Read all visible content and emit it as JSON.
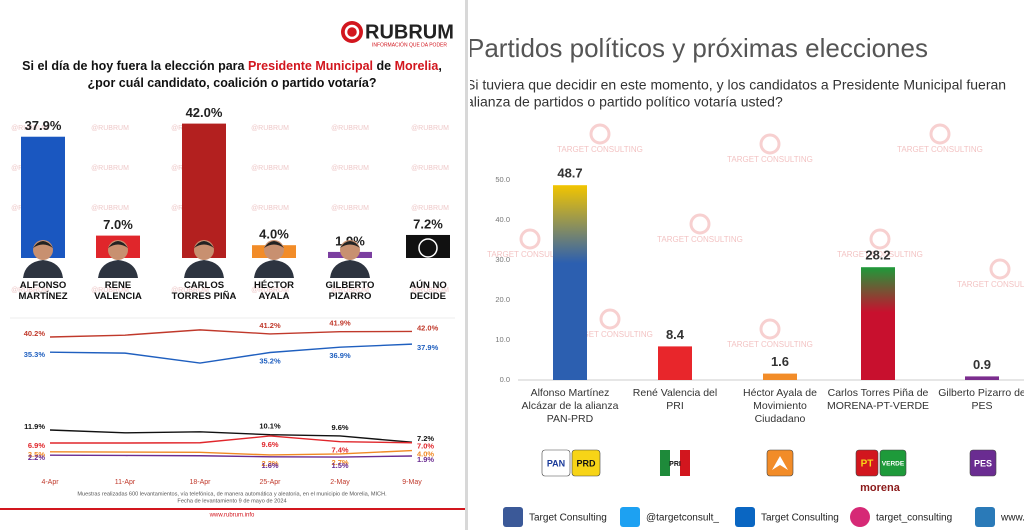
{
  "left": {
    "logo": {
      "name": "RUBRUM",
      "tagline": "INFORMACIÓN QUE DA PODER"
    },
    "watermark": "@RUBRUM",
    "footnote": [
      "Muestras realizadas 600 levantamientos, vía telefónica, de manera automática y aleatoria, en el municipio de Morelia, MICH.",
      "Fecha de levantamiento 9 de mayo de 2024"
    ],
    "url": "www.rubrum.info"
  },
  "right": {
    "watermark": "TARGET CONSULTING",
    "logos": [
      "PAN",
      "PRD",
      "PRI",
      "PT",
      "VERDE",
      "morena",
      "PES"
    ],
    "social": [
      "Target Consulting",
      "@targetconsult_",
      "Target Consulting",
      "target_consulting",
      "www.t"
    ]
  },
  "chart_data": [
    {
      "type": "bar",
      "title": [
        "Si el día de hoy fuera la elección para",
        "Presidente Municipal",
        "de",
        "Morelia",
        ", ¿por cuál candidato, coalición o partido votaría?"
      ],
      "categories": [
        "ALFONSO MARTÍNEZ",
        "RENE VALENCIA",
        "CARLOS TORRES PIÑA",
        "HÉCTOR AYALA",
        "GILBERTO PIZARRO",
        "AÚN NO DECIDE"
      ],
      "values": [
        37.9,
        7.0,
        42.0,
        4.0,
        1.9,
        7.2
      ],
      "value_labels": [
        "37.9%",
        "7.0%",
        "42.0%",
        "4.0%",
        "1.9%",
        "7.2%"
      ],
      "colors": [
        "#1a57c0",
        "#e0262b",
        "#b3201f",
        "#f28c28",
        "#7b3fa0",
        "#111111"
      ]
    },
    {
      "type": "line",
      "categories": [
        "4-Apr",
        "11-Apr",
        "18-Apr",
        "25-Apr",
        "2-May",
        "9-May"
      ],
      "series": [
        {
          "color": "#c0392b",
          "values": [
            40.2,
            40.8,
            42.5,
            41.2,
            41.9,
            42.0
          ],
          "value_labels": [
            "40.2%",
            null,
            null,
            "41.2%",
            "41.9%",
            "42.0%"
          ]
        },
        {
          "color": "#1f5fbf",
          "values": [
            35.3,
            35.0,
            31.8,
            35.2,
            36.9,
            37.9
          ],
          "value_labels": [
            "35.3%",
            null,
            null,
            "35.2%",
            "36.9%",
            "37.9%"
          ]
        },
        {
          "color": "#111111",
          "axis": "y2",
          "values": [
            11.9,
            10.8,
            11.2,
            10.1,
            9.6,
            7.2
          ],
          "value_labels": [
            "11.9%",
            null,
            null,
            "10.1%",
            "9.6%",
            "7.2%"
          ]
        },
        {
          "color": "#e0262b",
          "axis": "y2",
          "values": [
            6.9,
            6.9,
            7.0,
            9.6,
            7.4,
            7.0
          ],
          "value_labels": [
            "6.9%",
            null,
            null,
            "9.6%",
            "7.4%",
            "7.0%"
          ]
        },
        {
          "color": "#f08a24",
          "axis": "y2",
          "values": [
            3.5,
            3.4,
            3.3,
            2.3,
            2.7,
            4.0
          ],
          "value_labels": [
            "3.5%",
            null,
            null,
            "2.3%",
            "2.7%",
            "4.0%"
          ]
        },
        {
          "color": "#6a2c91",
          "axis": "y2",
          "values": [
            2.2,
            2.1,
            2.0,
            1.6,
            1.5,
            1.9
          ],
          "value_labels": [
            "2.2%",
            null,
            null,
            "1.6%",
            "1.5%",
            "1.9%"
          ]
        }
      ]
    },
    {
      "type": "bar",
      "title": "Partidos políticos y próximas elecciones",
      "subtitle": [
        "Si tuviera que decidir en este momento, y los candidatos a Presidente Municipal fueran",
        "alianza de partidos o partido político votaría usted?"
      ],
      "categories": [
        "Alfonso Martínez Alcázar de la alianza PAN-PRD",
        "René Valencia del PRI",
        "Héctor Ayala de Movimiento Ciudadano",
        "Carlos Torres Piña de MORENA-PT-VERDE",
        "Gilberto Pizarro de PES"
      ],
      "values": [
        48.7,
        8.4,
        1.6,
        28.2,
        0.9
      ],
      "colors": [
        "#2c5fb0",
        "#e8262b",
        "#f28c28",
        "#c8102e",
        "#7b2d8e"
      ],
      "accent_colors": [
        "#f2c500",
        null,
        null,
        "#1e9a3a",
        null
      ],
      "ylim": [
        0,
        50
      ],
      "yticks": [
        {
          "value": 0,
          "label": "0.0"
        },
        {
          "value": 10,
          "label": "10.0"
        },
        {
          "value": 20,
          "label": "20.0"
        },
        {
          "value": 30,
          "label": "30.0"
        },
        {
          "value": 40,
          "label": "40.0"
        },
        {
          "value": 50,
          "label": "50.0"
        }
      ]
    }
  ]
}
